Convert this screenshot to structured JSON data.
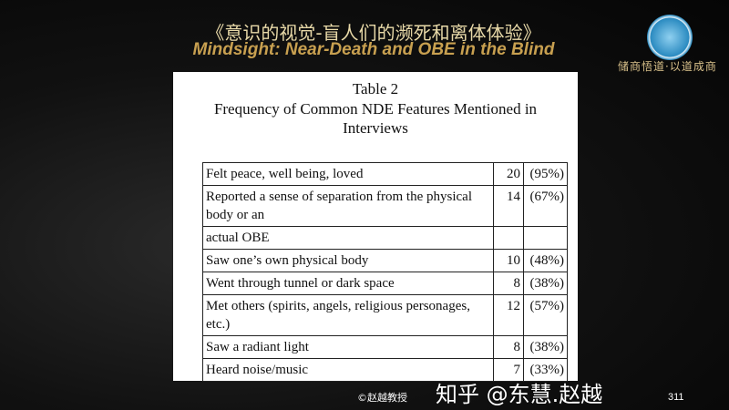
{
  "header": {
    "title_cn": "《意识的视觉-盲人们的濒死和离体体验》",
    "title_en": "Mindsight: Near-Death and OBE in the Blind"
  },
  "logo": {
    "motto": "储商悟道·以道成商"
  },
  "table": {
    "title": "Table 2",
    "caption_line1": "Frequency of Common NDE Features Mentioned in",
    "caption_line2": "Interviews",
    "rows": [
      {
        "feature": "Felt peace, well being, loved",
        "count": "20",
        "pct": "(95%)"
      },
      {
        "feature": "Reported a sense of separation from the physical body or an",
        "count": "14",
        "pct": "(67%)"
      },
      {
        "feature": "actual OBE",
        "count": "",
        "pct": ""
      },
      {
        "feature": "Saw one’s own physical body",
        "count": "10",
        "pct": "(48%)"
      },
      {
        "feature": "Went through tunnel or dark space",
        "count": "8",
        "pct": "(38%)"
      },
      {
        "feature": "Met others (spirits, angels, religious personages, etc.)",
        "count": "12",
        "pct": "(57%)"
      },
      {
        "feature": "Saw a radiant light",
        "count": "8",
        "pct": "(38%)"
      },
      {
        "feature": "Heard noise/music",
        "count": "7",
        "pct": "(33%)"
      }
    ]
  },
  "watermark": "知乎 @东慧.赵越",
  "footer": {
    "credit": "©赵越教授",
    "page": "311"
  }
}
